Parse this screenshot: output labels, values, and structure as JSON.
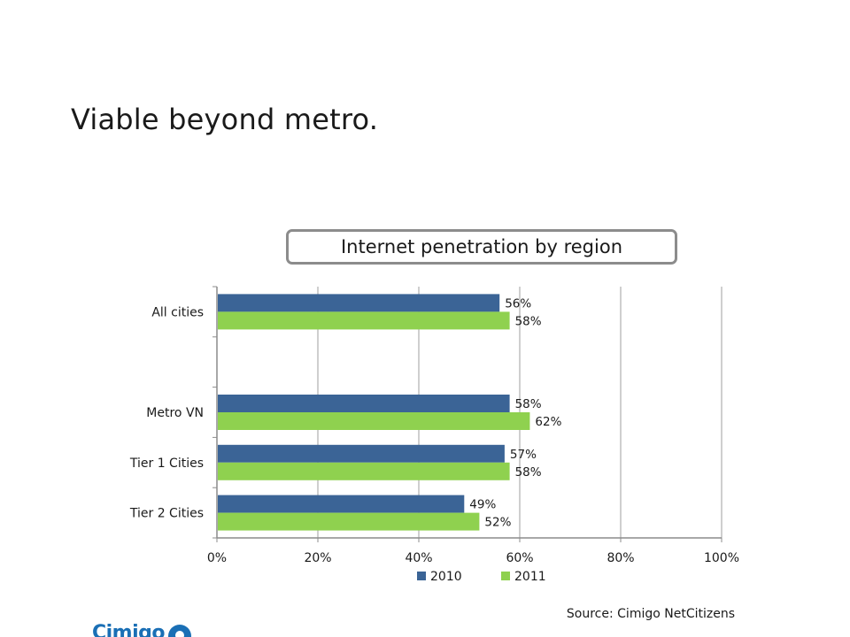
{
  "slide": {
    "title": "Viable beyond metro.",
    "source": "Source: Cimigo NetCitizens",
    "logo_text": "Cimigo"
  },
  "colors": {
    "series_2010": "#3b6496",
    "series_2011": "#8fd14f",
    "grid": "#bfbfbf",
    "axis": "#8c8c8c"
  },
  "chart_data": {
    "type": "bar",
    "orientation": "horizontal",
    "title": "Internet penetration by region",
    "categories": [
      "All cities",
      "",
      "Metro VN",
      "Tier 1 Cities",
      "Tier 2 Cities"
    ],
    "series": [
      {
        "name": "2010",
        "values": [
          56,
          null,
          58,
          57,
          49
        ],
        "labels": [
          "56%",
          "",
          "58%",
          "57%",
          "49%"
        ]
      },
      {
        "name": "2011",
        "values": [
          58,
          null,
          62,
          58,
          52
        ],
        "labels": [
          "58%",
          "",
          "62%",
          "58%",
          "52%"
        ]
      }
    ],
    "xlim": [
      0,
      100
    ],
    "xticks": [
      0,
      20,
      40,
      60,
      80,
      100
    ],
    "xtick_labels": [
      "0%",
      "20%",
      "40%",
      "60%",
      "80%",
      "100%"
    ],
    "grid": true,
    "legend": "bottom"
  }
}
